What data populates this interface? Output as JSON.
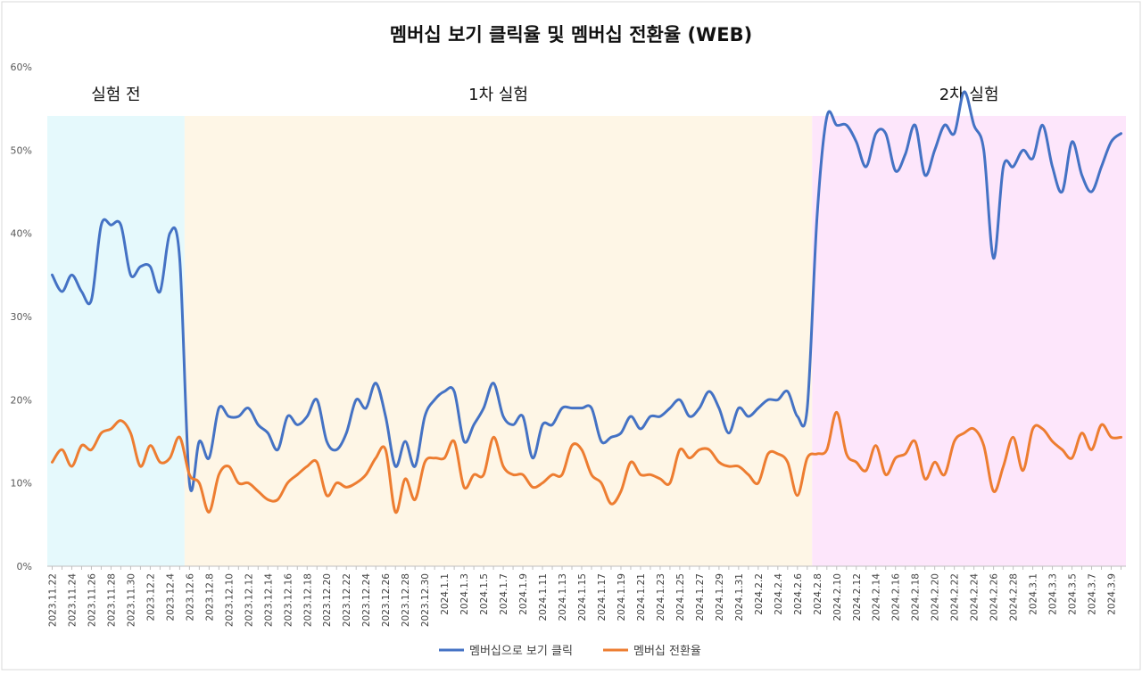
{
  "chart_data": {
    "type": "line",
    "title": "멤버십 보기 클릭율 및 멤버십 전환율 (WEB)",
    "ylim": [
      0,
      0.6
    ],
    "yticks": [
      {
        "value": 0.0,
        "label": "0%"
      },
      {
        "value": 0.1,
        "label": "10%"
      },
      {
        "value": 0.2,
        "label": "20%"
      },
      {
        "value": 0.3,
        "label": "30%"
      },
      {
        "value": 0.4,
        "label": "40%"
      },
      {
        "value": 0.5,
        "label": "50%"
      },
      {
        "value": 0.6,
        "label": "60%"
      }
    ],
    "grid": false,
    "legend_position": "bottom",
    "x": [
      "2023.11.22",
      "2023.11.23",
      "2023.11.24",
      "2023.11.25",
      "2023.11.26",
      "2023.11.27",
      "2023.11.28",
      "2023.11.29",
      "2023.11.30",
      "2023.12.1",
      "2023.12.2",
      "2023.12.3",
      "2023.12.4",
      "2023.12.5",
      "2023.12.6",
      "2023.12.7",
      "2023.12.8",
      "2023.12.9",
      "2023.12.10",
      "2023.12.11",
      "2023.12.12",
      "2023.12.13",
      "2023.12.14",
      "2023.12.15",
      "2023.12.16",
      "2023.12.17",
      "2023.12.18",
      "2023.12.19",
      "2023.12.20",
      "2023.12.21",
      "2023.12.22",
      "2023.12.23",
      "2023.12.24",
      "2023.12.25",
      "2023.12.26",
      "2023.12.27",
      "2023.12.28",
      "2023.12.29",
      "2023.12.30",
      "2023.12.31",
      "2024.1.1",
      "2024.1.2",
      "2024.1.3",
      "2024.1.4",
      "2024.1.5",
      "2024.1.6",
      "2024.1.7",
      "2024.1.8",
      "2024.1.9",
      "2024.1.10",
      "2024.1.11",
      "2024.1.12",
      "2024.1.13",
      "2024.1.14",
      "2024.1.15",
      "2024.1.16",
      "2024.1.17",
      "2024.1.18",
      "2024.1.19",
      "2024.1.20",
      "2024.1.21",
      "2024.1.22",
      "2024.1.23",
      "2024.1.24",
      "2024.1.25",
      "2024.1.26",
      "2024.1.27",
      "2024.1.28",
      "2024.1.29",
      "2024.1.30",
      "2024.1.31",
      "2024.2.1",
      "2024.2.2",
      "2024.2.3",
      "2024.2.4",
      "2024.2.5",
      "2024.2.6",
      "2024.2.7",
      "2024.2.8",
      "2024.2.9",
      "2024.2.10",
      "2024.2.11",
      "2024.2.12",
      "2024.2.13",
      "2024.2.14",
      "2024.2.15",
      "2024.2.16",
      "2024.2.17",
      "2024.2.18",
      "2024.2.19",
      "2024.2.20",
      "2024.2.21",
      "2024.2.22",
      "2024.2.23",
      "2024.2.24",
      "2024.2.25",
      "2024.2.26",
      "2024.2.27",
      "2024.2.28",
      "2024.2.29",
      "2024.3.1",
      "2024.3.2",
      "2024.3.3",
      "2024.3.4",
      "2024.3.5",
      "2024.3.6",
      "2024.3.7",
      "2024.3.8",
      "2024.3.9",
      "2024.3.10"
    ],
    "series": [
      {
        "name": "멤버십으로 보기 클릭",
        "color": "#4472C4",
        "values": [
          0.35,
          0.33,
          0.35,
          0.33,
          0.32,
          0.41,
          0.41,
          0.41,
          0.35,
          0.36,
          0.36,
          0.33,
          0.4,
          0.37,
          0.1,
          0.15,
          0.13,
          0.19,
          0.18,
          0.18,
          0.19,
          0.17,
          0.16,
          0.14,
          0.18,
          0.17,
          0.18,
          0.2,
          0.15,
          0.14,
          0.16,
          0.2,
          0.19,
          0.22,
          0.18,
          0.12,
          0.15,
          0.12,
          0.18,
          0.2,
          0.21,
          0.21,
          0.15,
          0.17,
          0.19,
          0.22,
          0.18,
          0.17,
          0.18,
          0.13,
          0.17,
          0.17,
          0.19,
          0.19,
          0.19,
          0.19,
          0.15,
          0.155,
          0.16,
          0.18,
          0.165,
          0.18,
          0.18,
          0.19,
          0.2,
          0.18,
          0.19,
          0.21,
          0.19,
          0.16,
          0.19,
          0.18,
          0.19,
          0.2,
          0.2,
          0.21,
          0.18,
          0.19,
          0.42,
          0.54,
          0.53,
          0.53,
          0.51,
          0.48,
          0.52,
          0.52,
          0.475,
          0.495,
          0.53,
          0.47,
          0.5,
          0.53,
          0.52,
          0.57,
          0.53,
          0.5,
          0.37,
          0.48,
          0.48,
          0.5,
          0.49,
          0.53,
          0.48,
          0.45,
          0.51,
          0.47,
          0.45,
          0.48,
          0.51,
          0.52
        ]
      },
      {
        "name": "멤버십 전환율",
        "color": "#ED7D31",
        "values": [
          0.125,
          0.14,
          0.12,
          0.145,
          0.14,
          0.16,
          0.165,
          0.175,
          0.16,
          0.12,
          0.145,
          0.125,
          0.13,
          0.155,
          0.11,
          0.1,
          0.065,
          0.11,
          0.12,
          0.1,
          0.1,
          0.09,
          0.08,
          0.08,
          0.1,
          0.11,
          0.12,
          0.125,
          0.085,
          0.1,
          0.095,
          0.1,
          0.11,
          0.13,
          0.14,
          0.065,
          0.105,
          0.08,
          0.125,
          0.13,
          0.13,
          0.15,
          0.095,
          0.11,
          0.11,
          0.155,
          0.12,
          0.11,
          0.11,
          0.095,
          0.1,
          0.11,
          0.11,
          0.145,
          0.14,
          0.11,
          0.1,
          0.075,
          0.09,
          0.125,
          0.11,
          0.11,
          0.105,
          0.1,
          0.14,
          0.13,
          0.14,
          0.14,
          0.125,
          0.12,
          0.12,
          0.11,
          0.1,
          0.135,
          0.135,
          0.125,
          0.085,
          0.13,
          0.135,
          0.14,
          0.185,
          0.135,
          0.125,
          0.115,
          0.145,
          0.11,
          0.13,
          0.135,
          0.15,
          0.105,
          0.125,
          0.11,
          0.15,
          0.16,
          0.165,
          0.145,
          0.09,
          0.12,
          0.155,
          0.115,
          0.165,
          0.165,
          0.15,
          0.14,
          0.13,
          0.16,
          0.14,
          0.17,
          0.155,
          0.155
        ]
      }
    ],
    "phases": [
      {
        "label": "실험 전",
        "start": 0,
        "end": 14,
        "color": "#E5F9FC"
      },
      {
        "label": "1차 실험",
        "start": 14,
        "end": 78,
        "color": "#FEF6E6"
      },
      {
        "label": "2차 실험",
        "start": 78,
        "end": 110,
        "color": "#FDE6FB"
      }
    ],
    "x_tick_step": 2
  }
}
